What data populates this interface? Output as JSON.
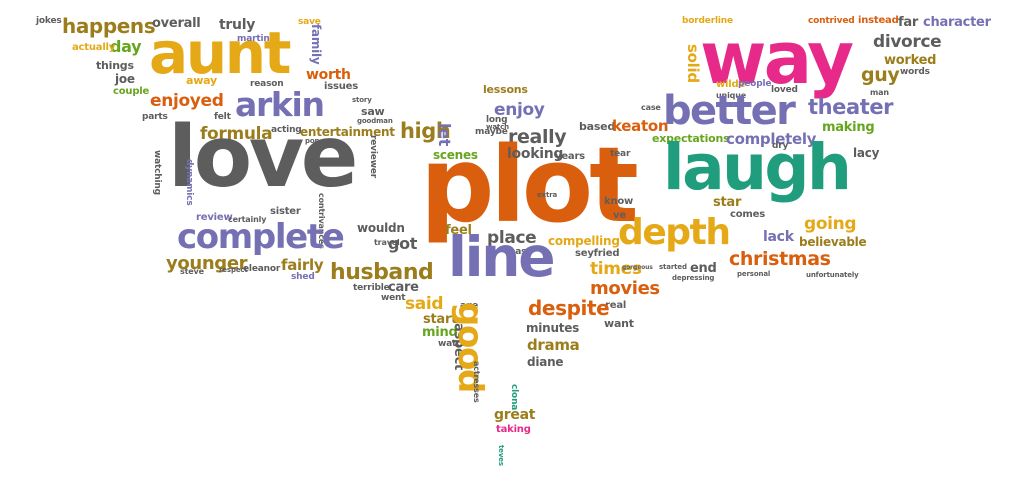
{
  "palette": {
    "gray": "#5d5d5d",
    "orange": "#d95f0e",
    "gold": "#e5a816",
    "olive": "#9b7d1b",
    "teal": "#1f9d7c",
    "purple": "#7570b3",
    "magenta": "#e7298a",
    "green": "#66a61e",
    "brown": "#a6761d"
  },
  "words": [
    {
      "text": "jokes",
      "c": "gray"
    },
    {
      "text": "happens",
      "c": "olive"
    },
    {
      "text": "overall",
      "c": "gray"
    },
    {
      "text": "truly",
      "c": "gray"
    },
    {
      "text": "save",
      "c": "gold"
    },
    {
      "text": "borderline",
      "c": "gold"
    },
    {
      "text": "contrived",
      "c": "orange"
    },
    {
      "text": "instead",
      "c": "orange"
    },
    {
      "text": "far",
      "c": "gray"
    },
    {
      "text": "character",
      "c": "purple"
    },
    {
      "text": "family",
      "c": "purple"
    },
    {
      "text": "aunt",
      "c": "gold"
    },
    {
      "text": "martin",
      "c": "purple"
    },
    {
      "text": "day",
      "c": "green"
    },
    {
      "text": "actually",
      "c": "gold"
    },
    {
      "text": "way",
      "c": "magenta"
    },
    {
      "text": "divorce",
      "c": "gray"
    },
    {
      "text": "solid",
      "c": "gold"
    },
    {
      "text": "things",
      "c": "gray"
    },
    {
      "text": "worth",
      "c": "orange"
    },
    {
      "text": "joe",
      "c": "gray"
    },
    {
      "text": "away",
      "c": "gold"
    },
    {
      "text": "reason",
      "c": "gray"
    },
    {
      "text": "issues",
      "c": "gray"
    },
    {
      "text": "couple",
      "c": "green"
    },
    {
      "text": "worked",
      "c": "olive"
    },
    {
      "text": "words",
      "c": "gray"
    },
    {
      "text": "guy",
      "c": "olive"
    },
    {
      "text": "man",
      "c": "gray"
    },
    {
      "text": "wilde",
      "c": "gold"
    },
    {
      "text": "people",
      "c": "purple"
    },
    {
      "text": "loved",
      "c": "gray"
    },
    {
      "text": "unique",
      "c": "gray"
    },
    {
      "text": "lessons",
      "c": "olive"
    },
    {
      "text": "enjoyed",
      "c": "orange"
    },
    {
      "text": "arkin",
      "c": "purple"
    },
    {
      "text": "saw",
      "c": "gray"
    },
    {
      "text": "goodman",
      "c": "gray"
    },
    {
      "text": "story",
      "c": "gray"
    },
    {
      "text": "felt",
      "c": "gray"
    },
    {
      "text": "parts",
      "c": "gray"
    },
    {
      "text": "long",
      "c": "gray"
    },
    {
      "text": "watch",
      "c": "gray"
    },
    {
      "text": "enjoy",
      "c": "purple"
    },
    {
      "text": "better",
      "c": "purple"
    },
    {
      "text": "theater",
      "c": "purple"
    },
    {
      "text": "making",
      "c": "green"
    },
    {
      "text": "case",
      "c": "gray"
    },
    {
      "text": "acting",
      "c": "gray"
    },
    {
      "text": "formula",
      "c": "olive"
    },
    {
      "text": "entertainment",
      "c": "olive"
    },
    {
      "text": "high",
      "c": "olive"
    },
    {
      "text": "let",
      "c": "purple"
    },
    {
      "text": "maybe",
      "c": "gray"
    },
    {
      "text": "really",
      "c": "gray"
    },
    {
      "text": "based",
      "c": "gray"
    },
    {
      "text": "keaton",
      "c": "orange"
    },
    {
      "text": "expectations",
      "c": "green"
    },
    {
      "text": "completely",
      "c": "purple"
    },
    {
      "text": "love",
      "c": "gray"
    },
    {
      "text": "plot",
      "c": "orange"
    },
    {
      "text": "laugh",
      "c": "teal"
    },
    {
      "text": "pop",
      "c": "gray"
    },
    {
      "text": "watching",
      "c": "gray"
    },
    {
      "text": "dynamics",
      "c": "purple"
    },
    {
      "text": "reviewer",
      "c": "gray"
    },
    {
      "text": "scenes",
      "c": "green"
    },
    {
      "text": "looking",
      "c": "gray"
    },
    {
      "text": "years",
      "c": "gray"
    },
    {
      "text": "tear",
      "c": "gray"
    },
    {
      "text": "dry",
      "c": "gray"
    },
    {
      "text": "lacy",
      "c": "gray"
    },
    {
      "text": "comes",
      "c": "gray"
    },
    {
      "text": "star",
      "c": "olive"
    },
    {
      "text": "know",
      "c": "gray"
    },
    {
      "text": "ve",
      "c": "gray"
    },
    {
      "text": "extra",
      "c": "gray"
    },
    {
      "text": "review",
      "c": "purple"
    },
    {
      "text": "certainly",
      "c": "gray"
    },
    {
      "text": "sister",
      "c": "gray"
    },
    {
      "text": "contrivances",
      "c": "gray"
    },
    {
      "text": "wouldn",
      "c": "gray"
    },
    {
      "text": "complete",
      "c": "purple"
    },
    {
      "text": "feel",
      "c": "olive"
    },
    {
      "text": "place",
      "c": "gray"
    },
    {
      "text": "depth",
      "c": "gold"
    },
    {
      "text": "going",
      "c": "gold"
    },
    {
      "text": "believable",
      "c": "olive"
    },
    {
      "text": "lack",
      "c": "purple"
    },
    {
      "text": "travel",
      "c": "gray"
    },
    {
      "text": "got",
      "c": "gray"
    },
    {
      "text": "past",
      "c": "gray"
    },
    {
      "text": "compelling",
      "c": "gold"
    },
    {
      "text": "younger",
      "c": "olive"
    },
    {
      "text": "eleanor",
      "c": "gray"
    },
    {
      "text": "steve",
      "c": "gray"
    },
    {
      "text": "respect",
      "c": "gray"
    },
    {
      "text": "line",
      "c": "purple"
    },
    {
      "text": "seyfried",
      "c": "gray"
    },
    {
      "text": "fairly",
      "c": "olive"
    },
    {
      "text": "shed",
      "c": "purple"
    },
    {
      "text": "husband",
      "c": "olive"
    },
    {
      "text": "times",
      "c": "gold"
    },
    {
      "text": "started",
      "c": "gray"
    },
    {
      "text": "end",
      "c": "gray"
    },
    {
      "text": "christmas",
      "c": "orange"
    },
    {
      "text": "depressing",
      "c": "gray"
    },
    {
      "text": "personal",
      "c": "gray"
    },
    {
      "text": "unfortunately",
      "c": "gray"
    },
    {
      "text": "terrible",
      "c": "gray"
    },
    {
      "text": "care",
      "c": "gray"
    },
    {
      "text": "went",
      "c": "gray"
    },
    {
      "text": "movies",
      "c": "orange"
    },
    {
      "text": "said",
      "c": "gold"
    },
    {
      "text": "age",
      "c": "gray"
    },
    {
      "text": "real",
      "c": "gray"
    },
    {
      "text": "despite",
      "c": "orange"
    },
    {
      "text": "start",
      "c": "olive"
    },
    {
      "text": "want",
      "c": "gray"
    },
    {
      "text": "mind",
      "c": "green"
    },
    {
      "text": "watch",
      "c": "gray"
    },
    {
      "text": "minutes",
      "c": "gray"
    },
    {
      "text": "aspect",
      "c": "gray"
    },
    {
      "text": "good",
      "c": "gold"
    },
    {
      "text": "drama",
      "c": "olive"
    },
    {
      "text": "diane",
      "c": "gray"
    },
    {
      "text": "actresses",
      "c": "gray"
    },
    {
      "text": "great",
      "c": "olive"
    },
    {
      "text": "taking",
      "c": "magenta"
    },
    {
      "text": "clona",
      "c": "teal"
    },
    {
      "text": "teves",
      "c": "teal"
    },
    {
      "text": "gorgeous",
      "c": "gray"
    }
  ]
}
